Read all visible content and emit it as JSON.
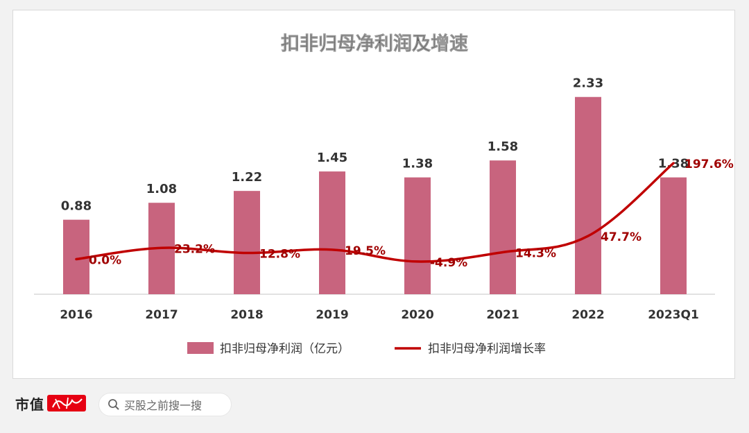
{
  "footer": {
    "brand": "市值",
    "search_placeholder": "买股之前搜一搜"
  },
  "colors": {
    "bar": "#c8647e",
    "line": "#c00000",
    "line_label": "#a00000",
    "bar_label": "#333333"
  },
  "chart_data": {
    "type": "bar",
    "title": "扣非归母净利润及增速",
    "categories": [
      "2016",
      "2017",
      "2018",
      "2019",
      "2020",
      "2021",
      "2022",
      "2023Q1"
    ],
    "series": [
      {
        "name": "扣非归母净利润（亿元）",
        "type": "bar",
        "values": [
          0.88,
          1.08,
          1.22,
          1.45,
          1.38,
          1.58,
          2.33,
          1.38
        ],
        "labels": [
          "0.88",
          "1.08",
          "1.22",
          "1.45",
          "1.38",
          "1.58",
          "2.33",
          "1.38"
        ]
      },
      {
        "name": "扣非归母净利润增长率",
        "type": "line",
        "values": [
          0.0,
          23.2,
          12.8,
          19.5,
          -4.9,
          14.3,
          47.7,
          197.6
        ],
        "labels": [
          "0.0%",
          "23.2%",
          "12.8%",
          "19.5%",
          "-4.9%",
          "14.3%",
          "47.7%",
          "197.6%"
        ]
      }
    ],
    "legend_position": "bottom",
    "grid": false
  }
}
